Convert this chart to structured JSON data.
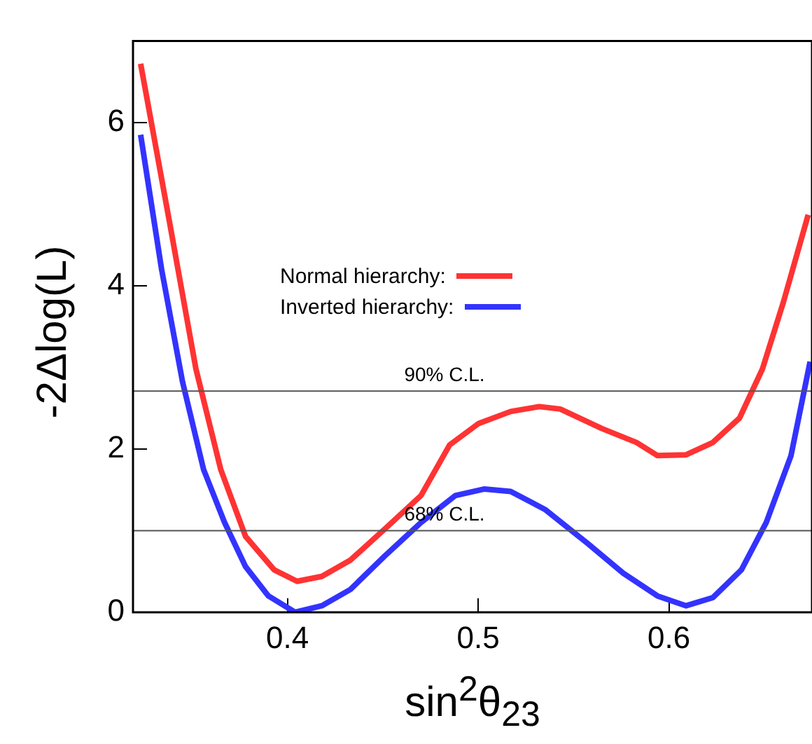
{
  "chart_data": {
    "type": "line",
    "xlabel": "sin$^{2}$θ$_{23}$",
    "ylabel": "-2Δlog(L)",
    "xlim": [
      0.319,
      0.675
    ],
    "xticks": [
      0.4,
      0.5,
      0.6
    ],
    "ylim": [
      0,
      7
    ],
    "yticks": [
      0,
      2,
      4,
      6
    ],
    "grid": false,
    "legend": "left",
    "marker": "none",
    "line_style": "solid",
    "series": [
      {
        "name": "Normal hierarchy:",
        "color": "#ff3333",
        "x": [
          0.323,
          0.338,
          0.352,
          0.365,
          0.378,
          0.393,
          0.405,
          0.418,
          0.433,
          0.451,
          0.47,
          0.485,
          0.5,
          0.517,
          0.532,
          0.543,
          0.565,
          0.583,
          0.594,
          0.609,
          0.623,
          0.637,
          0.649,
          0.66,
          0.673
        ],
        "values": [
          6.72,
          4.8,
          2.98,
          1.75,
          0.93,
          0.52,
          0.38,
          0.44,
          0.64,
          1.02,
          1.43,
          2.05,
          2.31,
          2.46,
          2.52,
          2.49,
          2.25,
          2.08,
          1.92,
          1.93,
          2.08,
          2.38,
          2.98,
          3.8,
          4.87
        ]
      },
      {
        "name": "Inverted hierarchy:",
        "color": "#3333ff",
        "x": [
          0.323,
          0.334,
          0.345,
          0.356,
          0.367,
          0.378,
          0.39,
          0.404,
          0.418,
          0.433,
          0.451,
          0.47,
          0.488,
          0.503,
          0.517,
          0.535,
          0.557,
          0.576,
          0.594,
          0.609,
          0.623,
          0.638,
          0.651,
          0.664,
          0.674
        ],
        "values": [
          5.85,
          4.2,
          2.82,
          1.75,
          1.1,
          0.56,
          0.2,
          0,
          0.08,
          0.28,
          0.69,
          1.1,
          1.43,
          1.51,
          1.48,
          1.26,
          0.85,
          0.48,
          0.2,
          0.08,
          0.18,
          0.52,
          1.1,
          1.92,
          3.07
        ]
      }
    ],
    "ref_lines": [
      {
        "axis": "y",
        "value": 2.71,
        "label": "90% C.L.",
        "color": "#555555"
      },
      {
        "axis": "y",
        "value": 1,
        "label": "68% C.L.",
        "color": "#555555"
      }
    ]
  }
}
